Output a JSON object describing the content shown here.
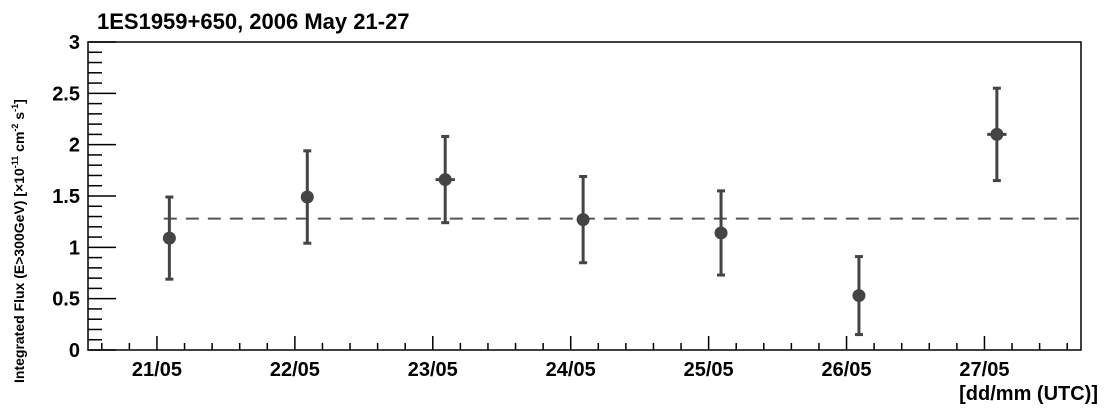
{
  "chart_data": {
    "type": "scatter",
    "title": "1ES1959+650, 2006 May 21-27",
    "xlabel": "[dd/mm (UTC)]",
    "ylabel_parts": {
      "main": "Integrated Flux (E>300GeV) [×10",
      "exp1": "-11",
      "mid1": " cm",
      "exp2": "-2",
      "mid2": " s",
      "exp3": "-1",
      "end": "]"
    },
    "xlim": [
      20.5,
      27.7
    ],
    "ylim": [
      0,
      3
    ],
    "x_ticks": [
      {
        "value": 21,
        "label": "21/05"
      },
      {
        "value": 22,
        "label": "22/05"
      },
      {
        "value": 23,
        "label": "23/05"
      },
      {
        "value": 24,
        "label": "24/05"
      },
      {
        "value": 25,
        "label": "25/05"
      },
      {
        "value": 26,
        "label": "26/05"
      },
      {
        "value": 27,
        "label": "27/05"
      }
    ],
    "y_ticks": [
      {
        "value": 0,
        "label": "0"
      },
      {
        "value": 0.5,
        "label": "0.5"
      },
      {
        "value": 1,
        "label": "1"
      },
      {
        "value": 1.5,
        "label": "1.5"
      },
      {
        "value": 2,
        "label": "2"
      },
      {
        "value": 2.5,
        "label": "2.5"
      },
      {
        "value": 3,
        "label": "3"
      }
    ],
    "points": [
      {
        "x": 21.09,
        "y": 1.09,
        "y_err_low": 0.4,
        "y_err_high": 0.4,
        "x_err": 0.04
      },
      {
        "x": 22.09,
        "y": 1.49,
        "y_err_low": 0.45,
        "y_err_high": 0.45,
        "x_err": 0.04
      },
      {
        "x": 23.09,
        "y": 1.66,
        "y_err_low": 0.42,
        "y_err_high": 0.42,
        "x_err": 0.07
      },
      {
        "x": 24.09,
        "y": 1.27,
        "y_err_low": 0.42,
        "y_err_high": 0.42,
        "x_err": 0.04
      },
      {
        "x": 25.09,
        "y": 1.14,
        "y_err_low": 0.41,
        "y_err_high": 0.41,
        "x_err": 0.04
      },
      {
        "x": 26.09,
        "y": 0.53,
        "y_err_low": 0.38,
        "y_err_high": 0.38,
        "x_err": 0.04
      },
      {
        "x": 27.09,
        "y": 2.1,
        "y_err_low": 0.45,
        "y_err_high": 0.45,
        "x_err": 0.07
      }
    ],
    "mean_flux": 1.28,
    "colors": {
      "marker": "#444444",
      "axis": "#000000",
      "mean_line": "#555555"
    },
    "grid": false,
    "legend": "none"
  }
}
